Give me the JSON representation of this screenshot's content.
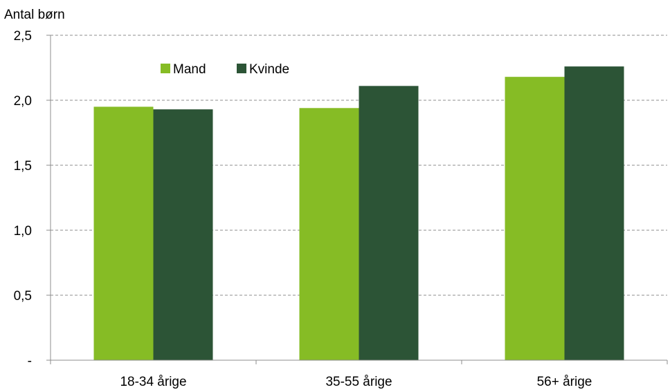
{
  "chart_data": {
    "type": "bar",
    "ylabel": "Antal børn",
    "categories": [
      "18-34 årige",
      "35-55 årige",
      "56+ årige"
    ],
    "series": [
      {
        "name": "Mand",
        "color": "#86bc25",
        "values": [
          1.95,
          1.94,
          2.18
        ]
      },
      {
        "name": "Kvinde",
        "color": "#2c5436",
        "values": [
          1.93,
          2.11,
          2.26
        ]
      }
    ],
    "ylim": [
      0,
      2.5
    ],
    "yticks": [
      {
        "value": 0,
        "label": "-"
      },
      {
        "value": 0.5,
        "label": "0,5"
      },
      {
        "value": 1.0,
        "label": "1,0"
      },
      {
        "value": 1.5,
        "label": "1,5"
      },
      {
        "value": 2.0,
        "label": "2,0"
      },
      {
        "value": 2.5,
        "label": "2,5"
      }
    ],
    "grid": "horizontal dashed",
    "legend_position": "top-left"
  }
}
